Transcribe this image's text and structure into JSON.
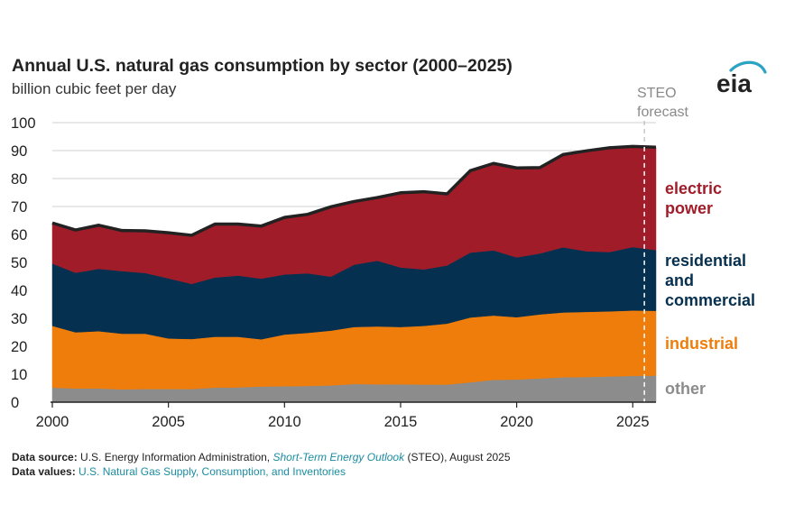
{
  "title": "Annual U.S. natural gas consumption by sector (2000–2025)",
  "subtitle": "billion cubic feet per day",
  "logo_text": "eia",
  "forecast_label": [
    "STEO",
    "forecast"
  ],
  "footer": {
    "source_label": "Data source:",
    "source_text_1": "U.S. Energy Information Administration,",
    "source_link": "Short-Term Energy Outlook",
    "source_text_2": "(STEO), August 2025",
    "values_label": "Data values:",
    "values_link": "U.S. Natural Gas Supply, Consumption, and Inventories"
  },
  "colors": {
    "other": "#8c8c8c",
    "industrial": "#ee7d0b",
    "residential_commercial": "#06304f",
    "electric_power": "#a11c29",
    "total_line": "#222222",
    "forecast_line": "#ffffff"
  },
  "chart_data": {
    "type": "area",
    "stacked": true,
    "title": "Annual U.S. natural gas consumption by sector (2000–2025)",
    "ylabel": "billion cubic feet per day",
    "ylim": [
      0,
      100
    ],
    "yticks": [
      0,
      10,
      20,
      30,
      40,
      50,
      60,
      70,
      80,
      90,
      100
    ],
    "xlim": [
      2000,
      2026
    ],
    "xticks": [
      2000,
      2005,
      2010,
      2015,
      2020,
      2025
    ],
    "grid": true,
    "forecast_start": 2025.5,
    "x": [
      2000,
      2001,
      2002,
      2003,
      2004,
      2005,
      2006,
      2007,
      2008,
      2009,
      2010,
      2011,
      2012,
      2013,
      2014,
      2015,
      2016,
      2017,
      2018,
      2019,
      2020,
      2021,
      2022,
      2023,
      2024,
      2025,
      2026
    ],
    "series": [
      {
        "name": "other",
        "label_lines": [
          "other"
        ],
        "color": "#8c8c8c",
        "values": [
          5.2,
          4.9,
          4.9,
          4.6,
          4.7,
          4.7,
          4.7,
          5.2,
          5.3,
          5.6,
          5.7,
          5.8,
          6.0,
          6.5,
          6.4,
          6.4,
          6.3,
          6.3,
          7.1,
          8.0,
          8.1,
          8.5,
          8.9,
          9.0,
          9.2,
          9.4,
          9.5
        ]
      },
      {
        "name": "industrial",
        "label_lines": [
          "industrial"
        ],
        "color": "#ee7d0b",
        "values": [
          22.1,
          20.1,
          20.5,
          19.9,
          19.8,
          18.1,
          17.9,
          18.2,
          18.1,
          16.9,
          18.5,
          19.0,
          19.6,
          20.4,
          20.7,
          20.5,
          21.0,
          21.8,
          23.2,
          23.0,
          22.3,
          22.9,
          23.2,
          23.3,
          23.3,
          23.4,
          23.2
        ]
      },
      {
        "name": "residential and commercial",
        "label_lines": [
          "residential",
          "and",
          "commercial"
        ],
        "color": "#06304f",
        "values": [
          22.3,
          21.3,
          22.3,
          22.4,
          21.7,
          21.5,
          19.7,
          21.2,
          21.9,
          21.7,
          21.5,
          21.3,
          19.3,
          22.3,
          23.5,
          21.3,
          20.2,
          20.8,
          23.2,
          23.3,
          21.4,
          21.8,
          23.3,
          21.7,
          21.2,
          22.7,
          21.7
        ]
      },
      {
        "name": "electric power",
        "label_lines": [
          "electric",
          "power"
        ],
        "color": "#a11c29",
        "values": [
          14.5,
          15.3,
          15.6,
          14.5,
          15.1,
          16.3,
          17.4,
          19.1,
          18.4,
          18.8,
          20.4,
          21.1,
          25.0,
          22.6,
          22.6,
          26.7,
          27.8,
          25.6,
          29.3,
          31.1,
          32.0,
          30.7,
          33.2,
          35.9,
          37.3,
          36.0,
          36.8
        ]
      }
    ]
  }
}
